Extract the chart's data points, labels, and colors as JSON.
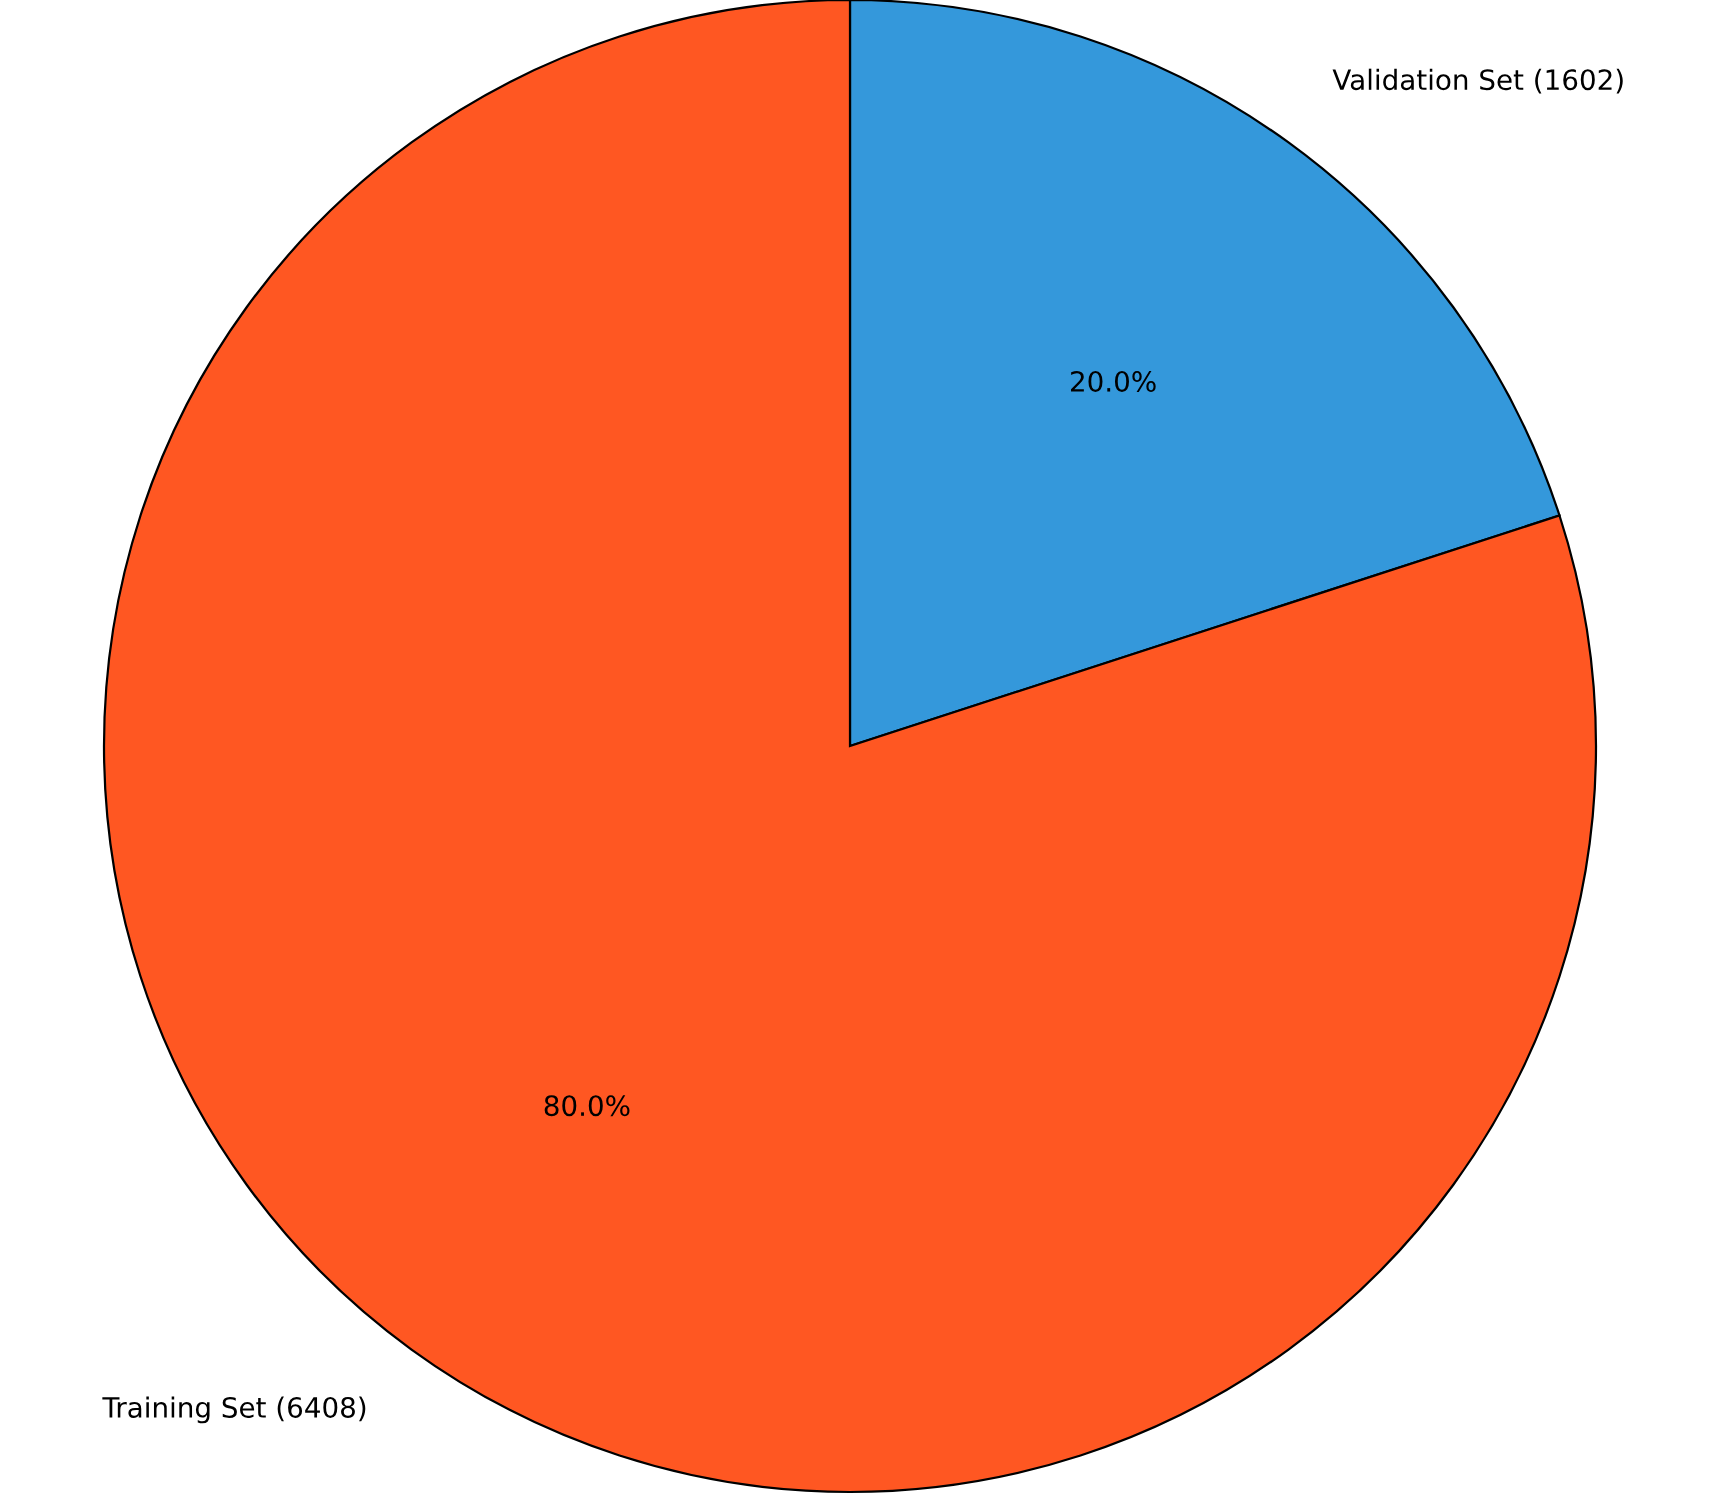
{
  "chart_data": {
    "type": "pie",
    "categories": [
      "Validation Set (1602)",
      "Training Set (6408)"
    ],
    "values": [
      20.0,
      80.0
    ],
    "value_labels": [
      "20.0%",
      "80.0%"
    ],
    "colors": [
      "#3498db",
      "#ff5722"
    ]
  }
}
